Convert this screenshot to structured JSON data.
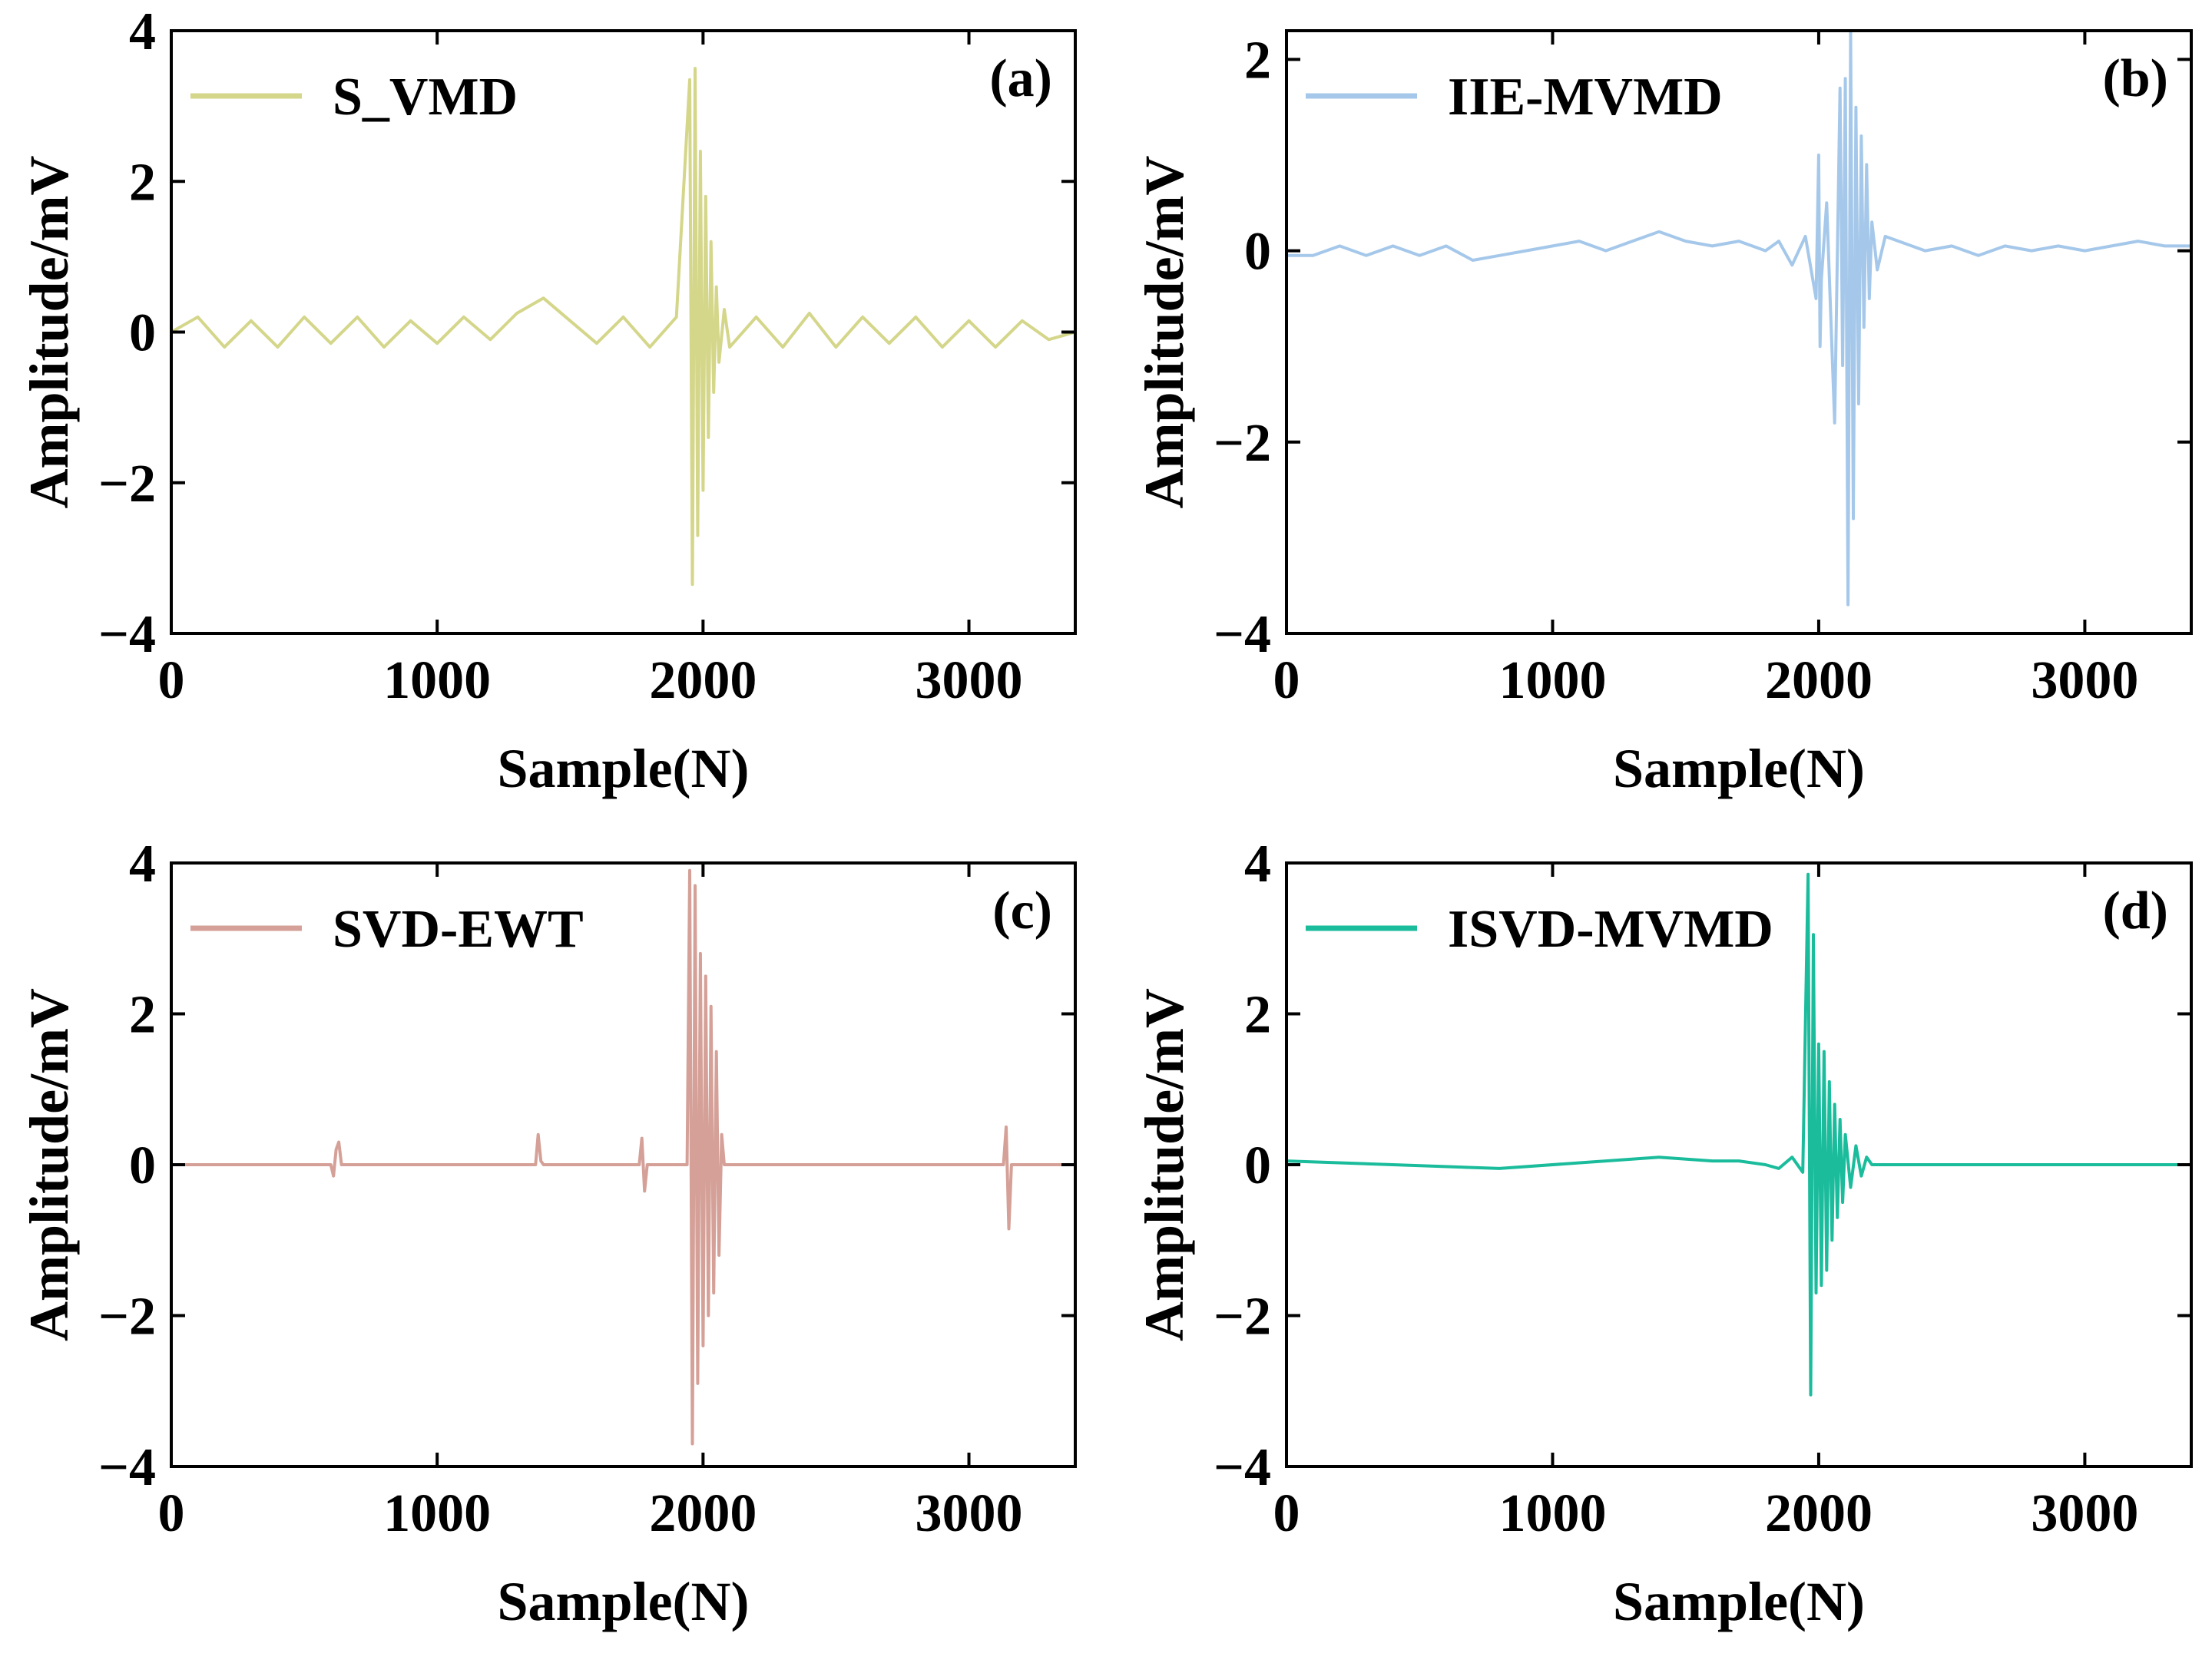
{
  "chart_data": [
    {
      "type": "line",
      "panel_tag": "(a)",
      "xlabel": "Sample(N)",
      "ylabel": "Amplitude/mV",
      "xlim": [
        0,
        3400
      ],
      "ylim": [
        -4,
        4
      ],
      "xticks": [
        0,
        1000,
        2000,
        3000
      ],
      "xtick_labels": [
        "0",
        "1000",
        "2000",
        "3000"
      ],
      "yticks": [
        -4,
        -2,
        0,
        2,
        4
      ],
      "ytick_labels": [
        "−4",
        "−2",
        "0",
        "2",
        "4"
      ],
      "grid": false,
      "legend_position": "top-left",
      "series": [
        {
          "name": "S_VMD",
          "color": "#d4d68a",
          "x": [
            0,
            100,
            200,
            300,
            400,
            500,
            600,
            700,
            800,
            900,
            1000,
            1100,
            1200,
            1300,
            1400,
            1500,
            1600,
            1700,
            1800,
            1900,
            1950,
            1960,
            1970,
            1980,
            1990,
            2000,
            2010,
            2020,
            2030,
            2040,
            2050,
            2060,
            2080,
            2100,
            2200,
            2300,
            2400,
            2500,
            2600,
            2700,
            2800,
            2900,
            3000,
            3100,
            3200,
            3300,
            3400
          ],
          "y": [
            0,
            0.2,
            -0.2,
            0.15,
            -0.2,
            0.2,
            -0.15,
            0.2,
            -0.2,
            0.15,
            -0.15,
            0.2,
            -0.1,
            0.25,
            0.45,
            0.15,
            -0.15,
            0.2,
            -0.2,
            0.2,
            3.35,
            -3.35,
            3.5,
            -2.7,
            2.4,
            -2.1,
            1.8,
            -1.4,
            1.2,
            -0.8,
            0.6,
            -0.4,
            0.3,
            -0.2,
            0.2,
            -0.2,
            0.25,
            -0.2,
            0.2,
            -0.15,
            0.2,
            -0.2,
            0.15,
            -0.2,
            0.15,
            -0.1,
            0
          ]
        }
      ]
    },
    {
      "type": "line",
      "panel_tag": "(b)",
      "xlabel": "Sample(N)",
      "ylabel": "Amplitude/mV",
      "xlim": [
        0,
        3400
      ],
      "ylim": [
        -4,
        2.3
      ],
      "xticks": [
        0,
        1000,
        2000,
        3000
      ],
      "xtick_labels": [
        "0",
        "1000",
        "2000",
        "3000"
      ],
      "yticks": [
        -4,
        -2,
        0,
        2
      ],
      "ytick_labels": [
        "−4",
        "−2",
        "0",
        "2"
      ],
      "grid": false,
      "legend_position": "top-left",
      "series": [
        {
          "name": "IIE-MVMD",
          "color": "#a5c8ea",
          "x": [
            0,
            100,
            200,
            300,
            400,
            500,
            600,
            700,
            800,
            900,
            1000,
            1100,
            1200,
            1300,
            1400,
            1500,
            1600,
            1700,
            1800,
            1850,
            1900,
            1950,
            1990,
            2000,
            2005,
            2010,
            2030,
            2060,
            2080,
            2090,
            2100,
            2110,
            2120,
            2130,
            2140,
            2150,
            2160,
            2170,
            2180,
            2190,
            2200,
            2220,
            2250,
            2300,
            2400,
            2500,
            2600,
            2700,
            2800,
            2900,
            3000,
            3100,
            3200,
            3300,
            3400
          ],
          "y": [
            -0.05,
            -0.05,
            0.05,
            -0.05,
            0.05,
            -0.05,
            0.05,
            -0.1,
            -0.05,
            0.0,
            0.05,
            0.1,
            0.0,
            0.1,
            0.2,
            0.1,
            0.05,
            0.1,
            0.0,
            0.1,
            -0.15,
            0.15,
            -0.5,
            1.0,
            -1.0,
            -0.3,
            0.5,
            -1.8,
            1.7,
            -1.2,
            1.8,
            -3.7,
            2.3,
            -2.8,
            1.5,
            -1.6,
            1.2,
            -0.8,
            0.9,
            -0.5,
            0.3,
            -0.2,
            0.15,
            0.1,
            0.0,
            0.05,
            -0.05,
            0.05,
            0.0,
            0.05,
            0.0,
            0.05,
            0.1,
            0.05,
            0.05
          ]
        }
      ]
    },
    {
      "type": "line",
      "panel_tag": "(c)",
      "xlabel": "Sample(N)",
      "ylabel": "Amplitude/mV",
      "xlim": [
        0,
        3400
      ],
      "ylim": [
        -4,
        4
      ],
      "xticks": [
        0,
        1000,
        2000,
        3000
      ],
      "xtick_labels": [
        "0",
        "1000",
        "2000",
        "3000"
      ],
      "yticks": [
        -4,
        -2,
        0,
        2,
        4
      ],
      "ytick_labels": [
        "−4",
        "−2",
        "0",
        "2",
        "4"
      ],
      "grid": false,
      "legend_position": "top-left",
      "series": [
        {
          "name": "SVD-EWT",
          "color": "#d4a097",
          "x": [
            0,
            600,
            610,
            620,
            630,
            640,
            650,
            1370,
            1380,
            1390,
            1400,
            1760,
            1770,
            1780,
            1790,
            1940,
            1950,
            1960,
            1970,
            1980,
            1990,
            2000,
            2010,
            2020,
            2030,
            2040,
            2050,
            2060,
            2070,
            2080,
            2200,
            2250,
            3130,
            3140,
            3150,
            3160,
            3170,
            3400
          ],
          "y": [
            0,
            0,
            -0.15,
            0.2,
            0.3,
            0,
            0,
            0,
            0.4,
            0.05,
            0,
            0,
            0.35,
            -0.35,
            0,
            0,
            3.9,
            -3.7,
            3.7,
            -2.9,
            2.8,
            -2.4,
            2.5,
            -2.0,
            2.1,
            -1.7,
            1.5,
            -1.2,
            0.4,
            0,
            0,
            0,
            0,
            0.5,
            -0.85,
            0,
            0,
            0
          ]
        }
      ]
    },
    {
      "type": "line",
      "panel_tag": "(d)",
      "xlabel": "Sample(N)",
      "ylabel": "Amplitude/mV",
      "xlim": [
        0,
        3400
      ],
      "ylim": [
        -4,
        4
      ],
      "xticks": [
        0,
        1000,
        2000,
        3000
      ],
      "xtick_labels": [
        "0",
        "1000",
        "2000",
        "3000"
      ],
      "yticks": [
        -4,
        -2,
        0,
        2,
        4
      ],
      "ytick_labels": [
        "−4",
        "−2",
        "0",
        "2",
        "4"
      ],
      "grid": false,
      "legend_position": "top-left",
      "series": [
        {
          "name": "ISVD-MVMD",
          "color": "#1abc9c",
          "x": [
            0,
            400,
            800,
            1200,
            1400,
            1600,
            1700,
            1800,
            1850,
            1900,
            1940,
            1960,
            1970,
            1980,
            1990,
            2000,
            2010,
            2020,
            2030,
            2040,
            2050,
            2060,
            2070,
            2080,
            2090,
            2100,
            2120,
            2140,
            2160,
            2180,
            2200,
            2300,
            2600,
            3000,
            3400
          ],
          "y": [
            0.05,
            0.0,
            -0.05,
            0.05,
            0.1,
            0.05,
            0.05,
            0.0,
            -0.05,
            0.1,
            -0.1,
            3.85,
            -3.05,
            3.05,
            -1.7,
            1.6,
            -1.6,
            1.5,
            -1.4,
            1.1,
            -1.0,
            0.8,
            -0.7,
            0.6,
            -0.5,
            0.4,
            -0.3,
            0.25,
            -0.15,
            0.1,
            0.0,
            0.0,
            0.0,
            0.0,
            0.0
          ]
        }
      ]
    }
  ]
}
